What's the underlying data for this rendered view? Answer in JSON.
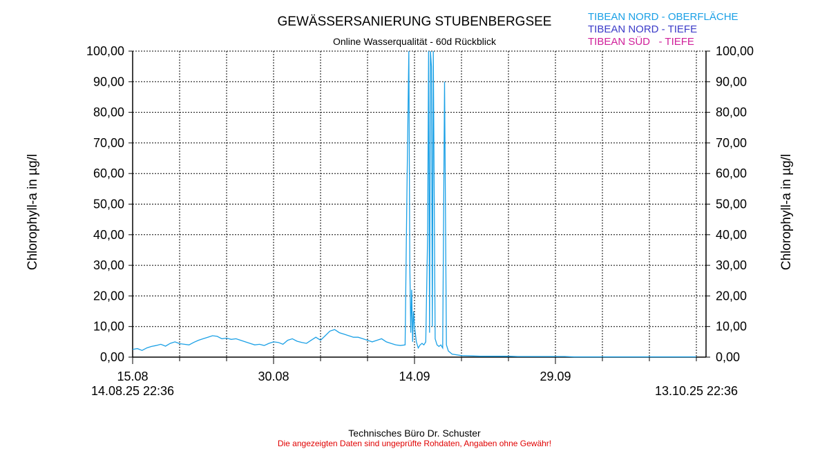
{
  "chart_data": {
    "type": "line",
    "title": "GEWÄSSERSANIERUNG STUBENBERGSEE",
    "subtitle": "Online Wasserqualität - 60d Rückblick",
    "ylabel_left": "Chlorophyll-a in µg/l",
    "ylabel_right": "Chlorophyll-a in µg/l",
    "ylim": [
      0,
      100
    ],
    "y_ticks": [
      "0,00",
      "10,00",
      "20,00",
      "30,00",
      "40,00",
      "50,00",
      "60,00",
      "70,00",
      "80,00",
      "90,00",
      "100,00"
    ],
    "x_start": "14.08.25 22:36",
    "x_end": "13.10.25 22:36",
    "x_range_days": [
      0,
      60
    ],
    "x_ticks": [
      {
        "label": "15.08",
        "day": 0
      },
      {
        "label": "30.08",
        "day": 15
      },
      {
        "label": "14.09",
        "day": 30
      },
      {
        "label": "29.09",
        "day": 45
      }
    ],
    "grid": true,
    "legend_placement": "top-right",
    "series": [
      {
        "name": "TIBEAN NORD - OBERFLÄCHE",
        "color": "#1aa0e6",
        "x": [
          0,
          0.5,
          1,
          1.5,
          2,
          2.5,
          3,
          3.5,
          4,
          4.5,
          5,
          5.5,
          6,
          6.5,
          7,
          7.5,
          8,
          8.5,
          9,
          9.5,
          10,
          10.5,
          11,
          11.5,
          12,
          12.5,
          13,
          13.5,
          14,
          14.5,
          15,
          15.5,
          16,
          16.5,
          17,
          17.5,
          18,
          18.5,
          19,
          19.5,
          20,
          20.5,
          21,
          21.5,
          22,
          22.5,
          23,
          23.5,
          24,
          24.5,
          25,
          25.5,
          26,
          26.5,
          27,
          27.5,
          28,
          28.5,
          29,
          29.2,
          29.4,
          29.5,
          29.6,
          29.7,
          29.8,
          29.9,
          30,
          30.2,
          30.4,
          30.6,
          30.8,
          31,
          31.2,
          31.4,
          31.5,
          31.6,
          31.7,
          31.8,
          31.9,
          32,
          32.2,
          32.4,
          32.6,
          32.8,
          33,
          33.2,
          33.4,
          33.6,
          33.8,
          34,
          35,
          36,
          37,
          38,
          39,
          40,
          41,
          42,
          43,
          44,
          45,
          46,
          47,
          48,
          49,
          50,
          51,
          52,
          53,
          54,
          55,
          56,
          57,
          58,
          59,
          60
        ],
        "y": [
          2.5,
          2.8,
          2.2,
          3,
          3.5,
          3.8,
          4.2,
          3.6,
          4.5,
          5,
          4.4,
          4.2,
          4,
          4.8,
          5.5,
          6,
          6.5,
          7,
          6.8,
          6,
          6.2,
          5.8,
          6,
          5.5,
          5,
          4.5,
          4,
          4.2,
          3.8,
          4.5,
          5,
          4.8,
          4.2,
          5.5,
          6,
          5.2,
          4.8,
          4.5,
          5.5,
          6.5,
          5.5,
          7,
          8.5,
          9,
          8,
          7.5,
          7,
          6.5,
          6.5,
          6,
          5.5,
          5,
          5.5,
          6,
          5,
          4.5,
          4,
          3.8,
          4,
          55,
          100,
          30,
          8,
          22,
          5,
          15,
          10,
          5,
          3,
          4,
          4.5,
          4,
          5,
          40,
          100,
          8,
          100,
          95,
          10,
          100,
          6,
          4,
          3.5,
          4,
          3,
          90,
          4,
          2,
          1.5,
          1,
          0.5,
          0.4,
          0.3,
          0.3,
          0.3,
          0.3,
          0.2,
          0.2,
          0.2,
          0.2,
          0.2,
          0.2,
          0.1,
          0.1,
          0.1,
          0.1,
          0.1,
          0.1,
          0.1,
          0.1,
          0.1,
          0.1,
          0.1,
          0.1,
          0.1,
          0.1
        ]
      },
      {
        "name": "TIBEAN NORD - TIEFE",
        "color": "#3a3ac8",
        "x": [],
        "y": []
      },
      {
        "name": "TIBEAN SÜD   - TIEFE",
        "color": "#d0209a",
        "x": [],
        "y": []
      }
    ]
  },
  "footer": {
    "company": "Technisches Büro Dr. Schuster",
    "disclaimer": "Die angezeigten Daten sind ungeprüfte Rohdaten, Angaben ohne Gewähr!"
  }
}
